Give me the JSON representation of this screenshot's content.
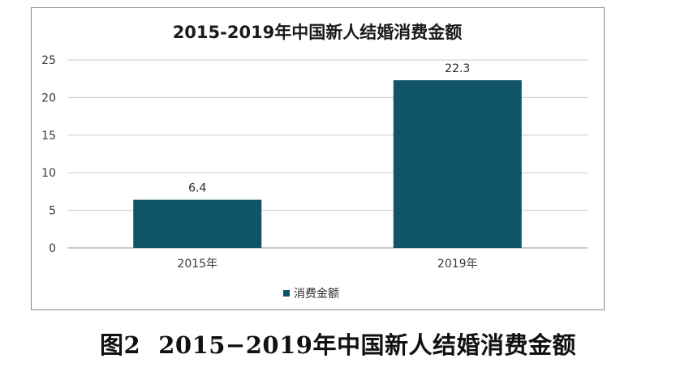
{
  "chart_data": {
    "type": "bar",
    "title": "2015-2019年中国新人结婚消费金额",
    "categories": [
      "2015年",
      "2019年"
    ],
    "series": [
      {
        "name": "消费金额",
        "values": [
          6.4,
          22.3
        ],
        "color": "#0f5467"
      }
    ],
    "data_labels": [
      "6.4",
      "22.3"
    ],
    "ylim": [
      0,
      25
    ],
    "yticks": [
      0,
      5,
      10,
      15,
      20,
      25
    ],
    "xlabel": "",
    "ylabel": "",
    "grid": true,
    "legend_position": "bottom"
  },
  "caption": {
    "number": "图2",
    "text": "2015−2019年中国新人结婚消费金额"
  }
}
